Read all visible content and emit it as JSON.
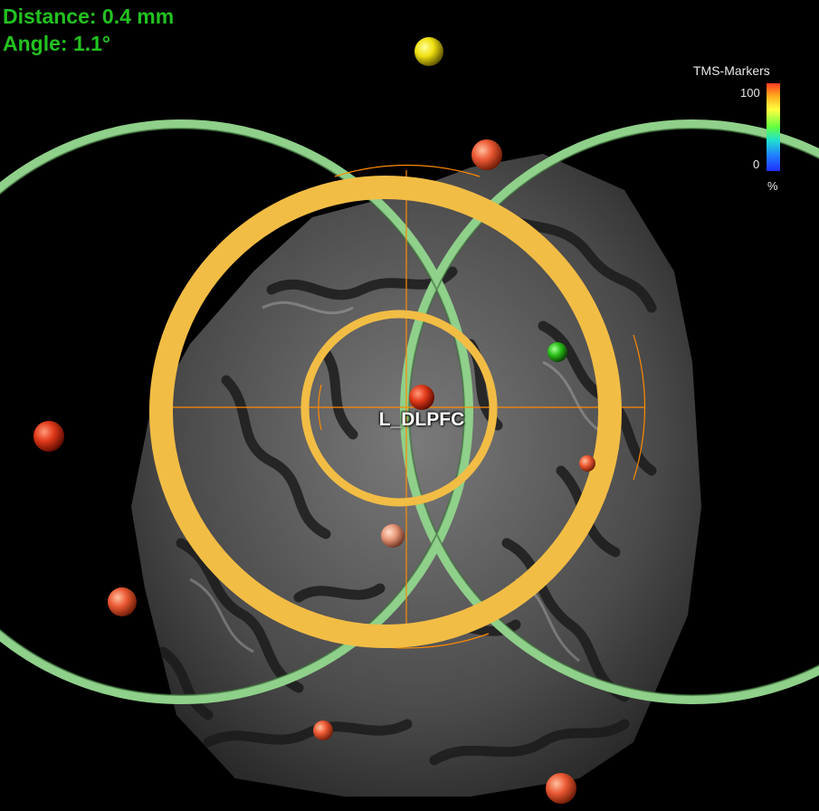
{
  "readouts": {
    "distance": "Distance: 0.4 mm",
    "angle": "Angle: 1.1°"
  },
  "legend": {
    "title": "TMS-Markers",
    "max_label": "100",
    "min_label": "0",
    "unit_label": "%"
  },
  "target": {
    "label": "L_DLPFC"
  },
  "colors": {
    "readout_text": "#22c21f",
    "crosshair_rings": "#f2bd45",
    "coil_rings": "#8fd08a",
    "crosshair_lines": "#ff8a00"
  },
  "markers": [
    {
      "color": "yellow"
    },
    {
      "color": "red"
    },
    {
      "color": "red"
    },
    {
      "color": "green"
    },
    {
      "color": "red"
    },
    {
      "color": "red"
    },
    {
      "color": "salmon"
    },
    {
      "color": "red"
    },
    {
      "color": "red"
    },
    {
      "color": "red"
    }
  ]
}
